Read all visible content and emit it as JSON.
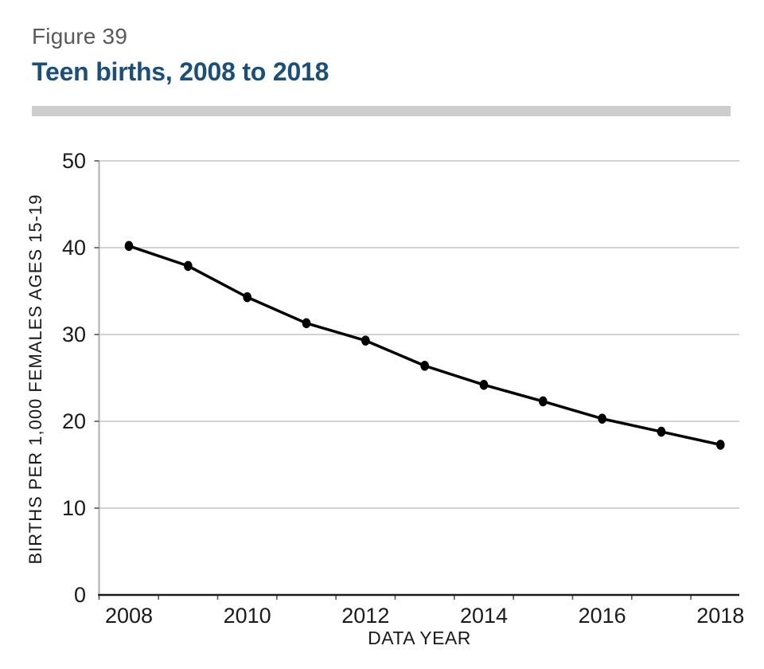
{
  "header": {
    "figure_label": "Figure 39",
    "title": "Teen births, 2008 to 2018"
  },
  "colors": {
    "figure_label": "#58595b",
    "title": "#1a4f7c",
    "divider": "#cdcdcd",
    "gridline": "#c4c5c6",
    "x_axis": "#1a1a1a",
    "y_axis": "#b4b5b6",
    "series": "#000000"
  },
  "chart_data": {
    "type": "line",
    "title": "Teen births, 2008 to 2018",
    "xlabel": "DATA YEAR",
    "ylabel": "BIRTHS PER 1,000 FEMALES AGES 15-19",
    "categories": [
      "2008",
      "2009",
      "2010",
      "2011",
      "2012",
      "2013",
      "2014",
      "2015",
      "2016",
      "2017",
      "2018"
    ],
    "values": [
      40.2,
      37.9,
      34.3,
      31.3,
      29.3,
      26.4,
      24.2,
      22.3,
      20.3,
      18.8,
      17.3
    ],
    "x_tick_labels": [
      "2008",
      "2010",
      "2012",
      "2014",
      "2016",
      "2018"
    ],
    "y_ticks": [
      0,
      10,
      20,
      30,
      40,
      50
    ],
    "ylim": [
      0,
      50
    ],
    "grid": "horizontal-only",
    "legend": "none",
    "marker": "filled-circle",
    "series_color": "#000000"
  }
}
